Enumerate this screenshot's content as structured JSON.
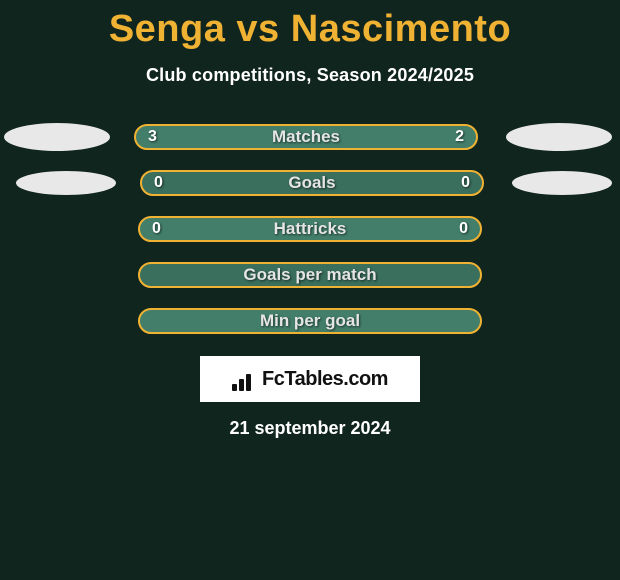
{
  "title": "Senga vs Nascimento",
  "subtitle": "Club competitions, Season 2024/2025",
  "date": "21 september 2024",
  "brand": "FcTables.com",
  "colors": {
    "background": "#11251f",
    "accent": "#f0b233",
    "pill_fill_primary": "#437e6a",
    "pill_fill_alt": "#3a6e5d",
    "ellipse": "#e8e8e8",
    "logo_bg": "#ffffff",
    "text": "#ffffff"
  },
  "rows": [
    {
      "label": "Matches",
      "left": "3",
      "right": "2",
      "show_side_ellipses": true,
      "fill": "primary"
    },
    {
      "label": "Goals",
      "left": "0",
      "right": "0",
      "show_side_ellipses": true,
      "fill": "alt"
    },
    {
      "label": "Hattricks",
      "left": "0",
      "right": "0",
      "show_side_ellipses": false,
      "fill": "primary"
    },
    {
      "label": "Goals per match",
      "left": "",
      "right": "",
      "show_side_ellipses": false,
      "fill": "alt"
    },
    {
      "label": "Min per goal",
      "left": "",
      "right": "",
      "show_side_ellipses": false,
      "fill": "primary"
    }
  ]
}
